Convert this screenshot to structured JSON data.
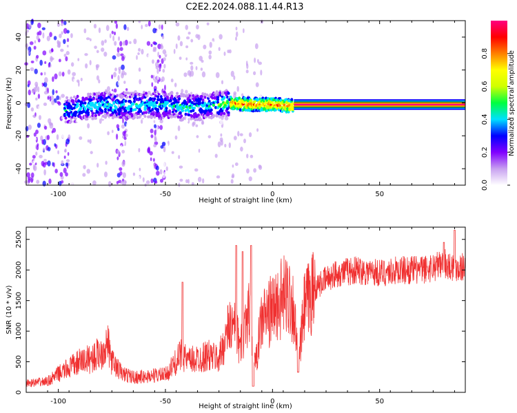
{
  "figure": {
    "title": "C2E2.2024.088.11.44.R13"
  },
  "chart_data": [
    {
      "type": "heatmap",
      "xlabel": "Height of straight line (km)",
      "ylabel": "Frequency (Hz)",
      "xlim": [
        -115,
        90
      ],
      "ylim": [
        -50,
        50
      ],
      "xticks": [
        -100,
        -50,
        0,
        50
      ],
      "yticks": [
        -40,
        -20,
        0,
        20,
        40
      ],
      "ridge": [
        {
          "x": -97,
          "y": -5
        },
        {
          "x": -90,
          "y": -3
        },
        {
          "x": -80,
          "y": -1
        },
        {
          "x": -70,
          "y": -2
        },
        {
          "x": -60,
          "y": -1
        },
        {
          "x": -50,
          "y": -1
        },
        {
          "x": -40,
          "y": -3
        },
        {
          "x": -30,
          "y": -2
        },
        {
          "x": -20,
          "y": 0
        },
        {
          "x": -10,
          "y": -1
        },
        {
          "x": 0,
          "y": -1
        },
        {
          "x": 10,
          "y": -2
        },
        {
          "x": 30,
          "y": -1
        },
        {
          "x": 60,
          "y": -1
        },
        {
          "x": 90,
          "y": -1
        }
      ],
      "colorbar": {
        "label": "Normalized spectral amplitude",
        "range": [
          0,
          1
        ],
        "ticks": [
          "0.0",
          "0.2",
          "0.4",
          "0.6",
          "0.8"
        ],
        "colors": [
          "#ffffff",
          "#c8a0f0",
          "#8000ff",
          "#0000ff",
          "#00e0ff",
          "#00ff40",
          "#d0ff00",
          "#ffff00",
          "#ff8000",
          "#ff0000",
          "#ff0080"
        ]
      }
    },
    {
      "type": "line",
      "xlabel": "Height of straight line (km)",
      "ylabel": "SNR (10 * v/v)",
      "xlim": [
        -115,
        90
      ],
      "ylim": [
        0,
        2700
      ],
      "xticks": [
        -100,
        -50,
        0,
        50
      ],
      "yticks": [
        0,
        500,
        1000,
        1500,
        2000,
        2500
      ],
      "color": "#f03030",
      "x": [
        -115,
        -110,
        -105,
        -100,
        -95,
        -90,
        -85,
        -80,
        -77,
        -75,
        -70,
        -65,
        -60,
        -55,
        -50,
        -45,
        -42,
        -40,
        -35,
        -30,
        -25,
        -20,
        -17,
        -15,
        -12,
        -10,
        -8,
        -5,
        0,
        5,
        8,
        10,
        12,
        15,
        20,
        25,
        30,
        40,
        50,
        60,
        70,
        80,
        85,
        90
      ],
      "y": [
        150,
        160,
        180,
        300,
        400,
        500,
        550,
        650,
        800,
        500,
        300,
        250,
        250,
        280,
        280,
        500,
        650,
        500,
        550,
        600,
        550,
        1100,
        1000,
        700,
        1300,
        1200,
        450,
        1200,
        1350,
        1550,
        1600,
        1350,
        450,
        1400,
        1700,
        1850,
        1950,
        2000,
        1950,
        2000,
        2000,
        2100,
        2050,
        2050
      ],
      "spikes": [
        {
          "x": -42,
          "y": 1800
        },
        {
          "x": -17,
          "y": 2400
        },
        {
          "x": -14,
          "y": 2300
        },
        {
          "x": -10,
          "y": 2400
        },
        {
          "x": 80,
          "y": 2450
        },
        {
          "x": 85,
          "y": 2650
        }
      ],
      "dips": [
        {
          "x": 12,
          "y": 330
        },
        {
          "x": -9,
          "y": 100
        }
      ]
    }
  ]
}
